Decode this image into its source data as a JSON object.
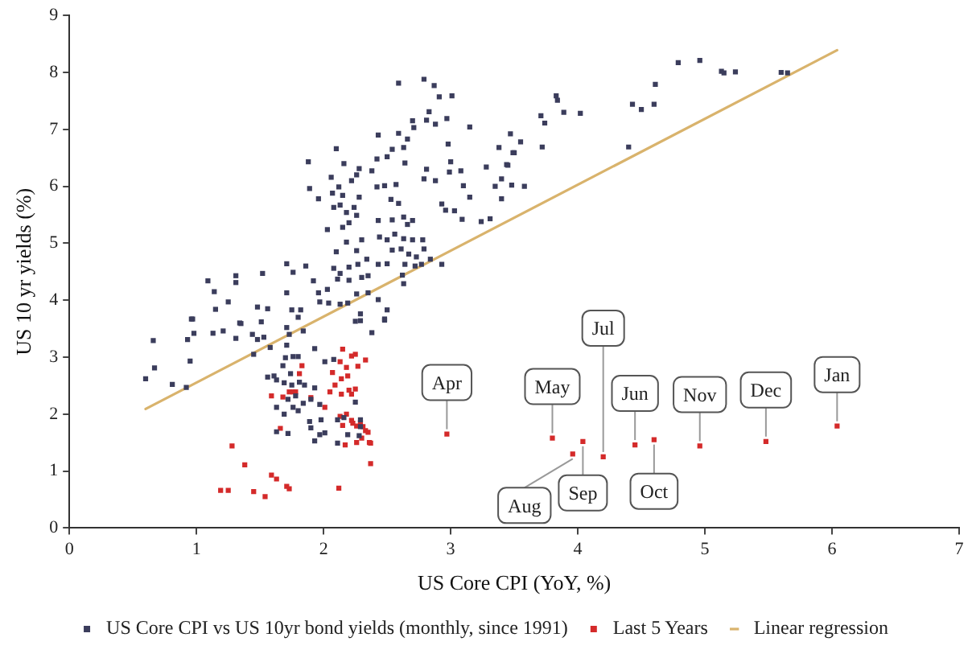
{
  "chart_data": {
    "type": "scatter",
    "xlabel": "US Core CPI (YoY, %)",
    "ylabel": "US 10 yr yields (%)",
    "xlim": [
      0,
      7
    ],
    "ylim": [
      0,
      9
    ],
    "xticks": [
      0,
      1,
      2,
      3,
      4,
      5,
      6,
      7
    ],
    "yticks": [
      0,
      1,
      2,
      3,
      4,
      5,
      6,
      7,
      8,
      9
    ],
    "grid": false,
    "legend": "bottom",
    "series": [
      {
        "name": "US Core CPI vs US 10yr bond yields (monthly, since 1991)",
        "color": "#3b3d5c",
        "marker": "square",
        "x": [
          2.59,
          2.79,
          2.87,
          2.91,
          3.01,
          2.83,
          2.7,
          2.71,
          2.81,
          2.88,
          2.97,
          3.15,
          2.43,
          2.59,
          2.66,
          2.63,
          2.1,
          2.54,
          2.5,
          2.42,
          2.98,
          3.47,
          3.38,
          3.49,
          1.88,
          2.16,
          2.28,
          2.26,
          2.38,
          2.64,
          2.81,
          3.0,
          2.99,
          3.08,
          3.28,
          2.06,
          2.22,
          2.79,
          2.88,
          3.44,
          3.4,
          3.48,
          3.35,
          3.1,
          2.42,
          2.48,
          2.57,
          2.12,
          1.89,
          1.96,
          2.07,
          2.15,
          2.28,
          2.53,
          2.59,
          3.15,
          3.4,
          2.08,
          2.13,
          2.24,
          2.18,
          2.26,
          2.93,
          2.96,
          3.03,
          3.09,
          3.24,
          3.31,
          2.03,
          2.15,
          2.2,
          2.43,
          2.54,
          2.63,
          2.7,
          2.66,
          2.18,
          2.3,
          2.44,
          2.5,
          2.56,
          2.63,
          2.7,
          2.78,
          2.1,
          2.26,
          2.34,
          2.54,
          2.61,
          2.67,
          2.79,
          2.73,
          1.71,
          1.86,
          1.76,
          2.08,
          2.13,
          2.2,
          2.27,
          2.43,
          2.5,
          2.64,
          2.84,
          2.93,
          2.62,
          2.72,
          2.77,
          1.92,
          2.03,
          2.11,
          2.2,
          2.3,
          2.35,
          2.63,
          1.09,
          1.31,
          1.31,
          1.52,
          1.14,
          1.25,
          0.96,
          1.15,
          1.35,
          1.48,
          1.56,
          1.71,
          1.75,
          1.82,
          1.8,
          1.96,
          1.97,
          2.04,
          2.19,
          2.26,
          2.35,
          2.43,
          2.5,
          2.48,
          2.29,
          2.25,
          2.13,
          1.51,
          0.66,
          0.67,
          0.6,
          0.81,
          0.92,
          0.95,
          0.97,
          0.93,
          0.98,
          1.13,
          1.21,
          1.31,
          1.34,
          1.45,
          1.44,
          1.48,
          1.53,
          1.58,
          1.71,
          1.71,
          1.73,
          1.84,
          1.93,
          1.7,
          1.76,
          1.8,
          1.68,
          1.61,
          1.56,
          1.63,
          1.74,
          1.69,
          1.75,
          1.81,
          1.85,
          1.78,
          1.72,
          1.63,
          1.69,
          1.76,
          1.8,
          1.84,
          1.9,
          1.93,
          1.97,
          1.98,
          1.89,
          1.9,
          1.97,
          1.93,
          1.72,
          1.63,
          2.01,
          2.11,
          2.11,
          2.16,
          2.25,
          2.29,
          2.29,
          2.19,
          2.28,
          2.08,
          2.01,
          2.48,
          2.38,
          2.29,
          4.79,
          4.96,
          5.13,
          5.15,
          5.24,
          5.6,
          5.65,
          4.61,
          4.43,
          4.5,
          4.6,
          4.4,
          3.83,
          3.84,
          3.89,
          4.02,
          3.71,
          3.74,
          3.72,
          3.55,
          3.5,
          3.45,
          3.58
        ],
        "values": [
          7.81,
          7.88,
          7.77,
          7.57,
          7.59,
          7.31,
          7.15,
          7.03,
          7.16,
          7.09,
          7.19,
          7.04,
          6.9,
          6.93,
          6.83,
          6.68,
          6.66,
          6.65,
          6.52,
          6.48,
          6.74,
          6.92,
          6.68,
          6.59,
          6.43,
          6.4,
          6.31,
          6.2,
          6.27,
          6.41,
          6.3,
          6.43,
          6.25,
          6.27,
          6.34,
          6.16,
          6.1,
          6.13,
          6.1,
          6.38,
          6.13,
          6.02,
          6.0,
          6.01,
          5.99,
          6.01,
          6.03,
          5.99,
          5.96,
          5.78,
          5.88,
          5.84,
          5.81,
          5.77,
          5.7,
          5.81,
          5.78,
          5.63,
          5.67,
          5.63,
          5.54,
          5.49,
          5.69,
          5.58,
          5.57,
          5.42,
          5.38,
          5.43,
          5.24,
          5.28,
          5.36,
          5.4,
          5.41,
          5.46,
          5.4,
          5.33,
          5.02,
          5.06,
          5.11,
          5.06,
          5.16,
          5.08,
          5.06,
          5.06,
          4.85,
          4.87,
          4.72,
          4.88,
          4.9,
          4.81,
          4.9,
          4.76,
          4.64,
          4.6,
          4.49,
          4.56,
          4.47,
          4.58,
          4.63,
          4.63,
          4.64,
          4.63,
          4.72,
          4.63,
          4.44,
          4.6,
          4.63,
          4.34,
          4.19,
          4.37,
          4.35,
          4.4,
          4.43,
          4.29,
          4.34,
          4.43,
          4.31,
          4.47,
          4.15,
          3.97,
          3.67,
          3.84,
          3.59,
          3.88,
          3.85,
          4.13,
          3.83,
          3.83,
          3.7,
          4.13,
          3.97,
          3.95,
          3.95,
          4.11,
          4.13,
          4.01,
          3.83,
          3.67,
          3.76,
          3.63,
          3.93,
          3.62,
          3.29,
          2.81,
          2.62,
          2.52,
          2.47,
          2.93,
          3.67,
          3.31,
          3.42,
          3.42,
          3.46,
          3.33,
          3.6,
          3.05,
          3.4,
          3.31,
          3.35,
          3.17,
          3.52,
          3.21,
          3.4,
          3.46,
          3.15,
          2.99,
          3.01,
          3.01,
          2.85,
          2.67,
          2.65,
          2.6,
          2.71,
          2.55,
          2.51,
          2.56,
          2.51,
          2.32,
          2.26,
          2.12,
          2.0,
          2.12,
          2.06,
          2.19,
          2.26,
          2.46,
          2.17,
          1.9,
          1.87,
          1.76,
          1.64,
          1.53,
          1.66,
          1.69,
          1.67,
          1.49,
          1.9,
          1.94,
          2.21,
          1.9,
          1.78,
          1.64,
          1.62,
          2.96,
          2.92,
          3.65,
          3.43,
          3.64,
          8.17,
          8.21,
          8.02,
          7.99,
          8.01,
          8.0,
          7.99,
          7.79,
          7.44,
          7.35,
          7.44,
          6.69,
          7.59,
          7.51,
          7.3,
          7.28,
          7.24,
          7.11,
          6.69,
          6.78,
          6.59,
          6.37,
          6.0
        ]
      },
      {
        "name": "Last 5 Years",
        "color": "#d42a2a",
        "marker": "square",
        "x": [
          2.97,
          3.8,
          4.04,
          3.96,
          4.2,
          4.45,
          4.6,
          4.96,
          5.48,
          6.04,
          1.28,
          1.38,
          1.19,
          1.25,
          1.45,
          1.54,
          1.59,
          1.63,
          1.71,
          1.73,
          2.12,
          2.37,
          2.37,
          2.15,
          2.22,
          2.25,
          2.33,
          2.13,
          2.27,
          2.18,
          2.07,
          2.19,
          2.14,
          2.09,
          2.05,
          2.2,
          2.25,
          2.14,
          2.22,
          1.59,
          1.68,
          1.73,
          1.76,
          1.78,
          1.81,
          1.83,
          1.9,
          2.01,
          2.18,
          2.13,
          2.22,
          2.29,
          2.15,
          2.23,
          2.26,
          2.31,
          2.33,
          2.35,
          2.3,
          2.26,
          2.36,
          2.17,
          1.66
        ],
        "values": [
          1.65,
          1.58,
          1.52,
          1.3,
          1.25,
          1.46,
          1.55,
          1.44,
          1.52,
          1.79,
          1.44,
          1.11,
          0.66,
          0.66,
          0.64,
          0.55,
          0.93,
          0.86,
          0.73,
          0.69,
          0.7,
          1.13,
          1.49,
          3.14,
          3.02,
          3.05,
          2.95,
          2.92,
          2.84,
          2.82,
          2.73,
          2.67,
          2.62,
          2.51,
          2.39,
          2.42,
          2.44,
          2.35,
          2.35,
          2.32,
          2.3,
          2.39,
          2.39,
          2.39,
          2.71,
          2.85,
          2.29,
          2.12,
          2.0,
          1.96,
          1.89,
          1.85,
          1.8,
          1.84,
          1.79,
          1.78,
          1.71,
          1.68,
          1.58,
          1.5,
          1.5,
          1.46,
          1.75
        ]
      },
      {
        "name": "Linear regression",
        "color": "#d9b36c",
        "type": "line",
        "x": [
          0.6,
          6.04
        ],
        "values": [
          2.09,
          8.39
        ]
      }
    ],
    "annotations": [
      {
        "text": "Apr",
        "x": 2.97,
        "y": 1.65
      },
      {
        "text": "May",
        "x": 3.8,
        "y": 1.58
      },
      {
        "text": "Sep",
        "x": 4.04,
        "y": 1.52
      },
      {
        "text": "Jun",
        "x": 4.45,
        "y": 1.46
      },
      {
        "text": "Nov",
        "x": 4.96,
        "y": 1.44
      },
      {
        "text": "Dec",
        "x": 5.48,
        "y": 1.52
      },
      {
        "text": "Aug",
        "x": 3.96,
        "y": 1.3
      },
      {
        "text": "Jul",
        "x": 4.2,
        "y": 1.25
      },
      {
        "text": "Oct",
        "x": 4.6,
        "y": 1.55
      },
      {
        "text": "Jan",
        "x": 6.04,
        "y": 1.79
      }
    ]
  }
}
